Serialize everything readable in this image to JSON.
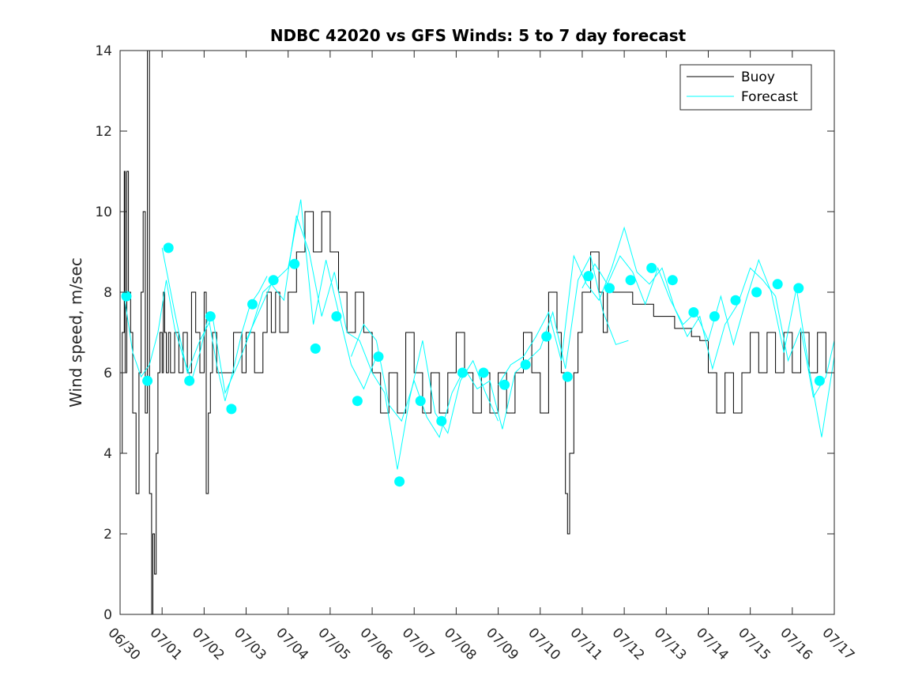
{
  "chart_data": {
    "type": "line",
    "title": "NDBC 42020 vs GFS Winds: 5 to 7 day forecast",
    "xlabel": "",
    "ylabel": "Wind speed, m/sec",
    "xlim": [
      0,
      17
    ],
    "ylim": [
      0,
      14
    ],
    "yticks": [
      0,
      2,
      4,
      6,
      8,
      10,
      12,
      14
    ],
    "xtick_labels": [
      "06/30",
      "07/01",
      "07/02",
      "07/03",
      "07/04",
      "07/05",
      "07/06",
      "07/07",
      "07/08",
      "07/09",
      "07/10",
      "07/11",
      "07/12",
      "07/13",
      "07/14",
      "07/15",
      "07/16",
      "07/17"
    ],
    "x_units": "days since 06/30",
    "grid": false,
    "legend_position": "top-right",
    "colors": {
      "buoy": "#000000",
      "forecast": "#00ffff",
      "markers": "#00ffff"
    },
    "series": [
      {
        "name": "Buoy",
        "style": "step-line",
        "x": [
          0.0,
          0.05,
          0.1,
          0.12,
          0.16,
          0.2,
          0.25,
          0.3,
          0.38,
          0.45,
          0.5,
          0.55,
          0.6,
          0.65,
          0.7,
          0.75,
          0.78,
          0.82,
          0.86,
          0.9,
          0.95,
          1.0,
          1.03,
          1.06,
          1.1,
          1.15,
          1.2,
          1.3,
          1.4,
          1.5,
          1.6,
          1.7,
          1.8,
          1.9,
          2.0,
          2.05,
          2.1,
          2.15,
          2.2,
          2.3,
          2.5,
          2.7,
          2.9,
          3.0,
          3.2,
          3.4,
          3.5,
          3.6,
          3.7,
          3.8,
          4.0,
          4.2,
          4.4,
          4.6,
          4.8,
          5.0,
          5.2,
          5.4,
          5.6,
          5.8,
          6.0,
          6.2,
          6.4,
          6.6,
          6.8,
          7.0,
          7.2,
          7.4,
          7.6,
          7.8,
          8.0,
          8.2,
          8.4,
          8.6,
          8.8,
          9.0,
          9.2,
          9.4,
          9.6,
          9.8,
          10.0,
          10.2,
          10.4,
          10.5,
          10.6,
          10.65,
          10.7,
          10.8,
          10.9,
          11.0,
          11.2,
          11.4,
          11.5,
          11.6,
          11.65,
          12.2,
          12.7,
          13.2,
          13.6,
          13.8,
          14.0,
          14.2,
          14.4,
          14.6,
          14.8,
          15.0,
          15.2,
          15.4,
          15.6,
          15.8,
          16.0,
          16.2,
          16.4,
          16.6,
          16.8,
          17.0
        ],
        "y": [
          4,
          7,
          11,
          6,
          11,
          8,
          7,
          5,
          3,
          6,
          8,
          10,
          5,
          14,
          3,
          0,
          2,
          1,
          4,
          6,
          7,
          6,
          8,
          7,
          6,
          7,
          6,
          7,
          6,
          7,
          6,
          8,
          7,
          6,
          8,
          3,
          5,
          6,
          7,
          6,
          6,
          7,
          6,
          7,
          6,
          7,
          8,
          7,
          8,
          7,
          8,
          9,
          10,
          9,
          10,
          9,
          8,
          7,
          8,
          7,
          6,
          5,
          6,
          5,
          7,
          6,
          5,
          6,
          5,
          6,
          7,
          6,
          5,
          6,
          5,
          6,
          5,
          6,
          7,
          6,
          5,
          8,
          7,
          6,
          3,
          2,
          4,
          6,
          7,
          8,
          9,
          8,
          7,
          8,
          8,
          7.7,
          7.4,
          7.1,
          6.9,
          6.8,
          6,
          5,
          6,
          5,
          6,
          7,
          6,
          7,
          6,
          7,
          6,
          7,
          6,
          7,
          6,
          6
        ]
      },
      {
        "name": "Forecast",
        "style": "multi-line",
        "runs": [
          {
            "x": [
              0.1,
              0.3,
              0.5,
              0.7,
              0.9,
              1.1,
              1.3,
              1.5,
              1.7,
              1.9,
              2.1,
              2.3,
              2.5,
              2.7,
              2.9,
              3.1,
              3.3,
              3.5
            ],
            "y": [
              7.9,
              6.5,
              5.9,
              6.2,
              7.0,
              8.3,
              7.1,
              6.4,
              5.8,
              6.5,
              7.4,
              6.2,
              5.3,
              6.1,
              7.0,
              7.7,
              8.0,
              8.4
            ]
          },
          {
            "x": [
              1.0,
              1.3,
              1.6,
              1.9,
              2.2,
              2.5,
              2.8,
              3.1,
              3.4,
              3.7,
              4.0,
              4.3,
              4.6,
              4.9,
              5.2,
              5.5,
              5.8,
              6.1
            ],
            "y": [
              9.1,
              7.5,
              6.0,
              6.8,
              7.4,
              5.5,
              6.2,
              7.0,
              8.0,
              8.3,
              8.6,
              10.3,
              7.2,
              8.8,
              7.5,
              6.2,
              5.6,
              6.4
            ]
          },
          {
            "x": [
              3.0,
              3.3,
              3.6,
              3.9,
              4.2,
              4.5,
              4.8,
              5.1,
              5.4,
              5.7,
              6.0,
              6.3,
              6.6,
              6.9,
              7.2,
              7.5,
              7.8,
              8.1,
              8.4,
              8.7,
              9.0
            ],
            "y": [
              6.8,
              7.5,
              8.2,
              7.8,
              9.9,
              9.0,
              7.4,
              8.5,
              7.0,
              6.8,
              6.0,
              5.5,
              3.6,
              5.4,
              6.8,
              5.0,
              4.5,
              5.8,
              6.3,
              5.5,
              4.8
            ]
          },
          {
            "x": [
              5.5,
              5.8,
              6.1,
              6.4,
              6.7,
              7.0,
              7.3,
              7.6,
              7.9,
              8.2,
              8.5,
              8.8,
              9.1,
              9.4,
              9.7,
              10.0,
              10.3,
              10.6,
              10.9,
              11.2,
              11.5,
              11.8,
              12.1
            ],
            "y": [
              6.4,
              7.2,
              6.8,
              5.2,
              4.8,
              5.8,
              4.9,
              4.4,
              5.5,
              6.1,
              5.6,
              5.8,
              4.6,
              6.0,
              6.3,
              6.6,
              7.5,
              6.1,
              8.3,
              8.9,
              7.5,
              6.7,
              6.8
            ]
          },
          {
            "x": [
              9.0,
              9.3,
              9.6,
              9.9,
              10.2,
              10.5,
              10.8,
              11.1,
              11.4,
              11.7,
              12.0,
              12.3,
              12.6,
              12.9,
              13.2,
              13.5,
              13.8,
              14.1,
              14.4,
              14.7,
              15.0,
              15.3,
              15.6,
              15.9,
              16.2,
              16.5,
              16.8,
              17.0
            ],
            "y": [
              5.7,
              6.2,
              6.4,
              6.9,
              7.5,
              6.3,
              8.9,
              8.2,
              7.8,
              8.6,
              9.6,
              8.5,
              8.2,
              8.6,
              7.6,
              6.9,
              7.4,
              6.1,
              7.2,
              7.7,
              8.6,
              8.3,
              7.9,
              6.3,
              7.1,
              5.4,
              5.9,
              6.8
            ]
          },
          {
            "x": [
              11.0,
              11.3,
              11.6,
              11.9,
              12.2,
              12.5,
              12.8,
              13.1,
              13.4,
              13.7,
              14.0,
              14.3,
              14.6,
              14.9,
              15.2,
              15.5,
              15.8,
              16.1,
              16.4,
              16.7,
              17.0
            ],
            "y": [
              8.1,
              8.7,
              8.2,
              8.9,
              8.5,
              7.7,
              8.6,
              7.8,
              7.2,
              7.5,
              6.8,
              7.9,
              6.7,
              7.8,
              8.8,
              8.0,
              6.5,
              8.1,
              6.1,
              4.4,
              6.4
            ]
          }
        ],
        "markers": {
          "x": [
            0.15,
            0.65,
            1.15,
            1.65,
            2.15,
            2.65,
            3.15,
            3.65,
            4.15,
            4.65,
            5.15,
            5.65,
            6.15,
            6.65,
            7.15,
            7.65,
            8.15,
            8.65,
            9.15,
            9.65,
            10.15,
            10.65,
            11.15,
            11.65,
            12.15,
            12.65,
            13.15,
            13.65,
            14.15,
            14.65,
            15.15,
            15.65,
            16.15,
            16.65
          ],
          "y": [
            7.9,
            5.8,
            9.1,
            5.8,
            7.4,
            5.1,
            7.7,
            8.3,
            8.7,
            6.6,
            7.4,
            5.3,
            6.4,
            3.3,
            5.3,
            4.8,
            6.0,
            6.0,
            5.7,
            6.2,
            6.9,
            5.9,
            8.4,
            8.1,
            8.3,
            8.6,
            8.3,
            7.5,
            7.4,
            7.8,
            8.0,
            8.2,
            8.1,
            5.8
          ]
        }
      }
    ]
  }
}
